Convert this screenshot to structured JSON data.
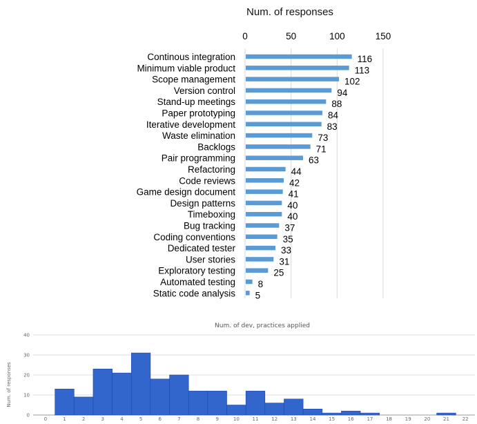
{
  "chart_data": [
    {
      "type": "bar",
      "orientation": "horizontal",
      "title": "Num. of responses",
      "xlim": [
        0,
        150
      ],
      "x_ticks": [
        "0",
        "50",
        "100",
        "150"
      ],
      "grid": true,
      "colors": {
        "bar": "#5b9bd5",
        "grid": "#d9d9d9"
      },
      "categories": [
        "Continous integration",
        "Minimum viable product",
        "Scope management",
        "Version control",
        "Stand-up meetings",
        "Paper prototyping",
        "Iterative development",
        "Waste elimination",
        "Backlogs",
        "Pair programming",
        "Refactoring",
        "Code reviews",
        "Game design document",
        "Design patterns",
        "Timeboxing",
        "Bug tracking",
        "Coding conventions",
        "Dedicated tester",
        "User stories",
        "Exploratory testing",
        "Automated testing",
        "Static code analysis"
      ],
      "values": [
        116,
        113,
        102,
        94,
        88,
        84,
        83,
        73,
        71,
        63,
        44,
        42,
        41,
        40,
        40,
        37,
        35,
        33,
        31,
        25,
        8,
        5
      ],
      "value_labels": [
        "116",
        "113",
        "102",
        "94",
        "88",
        "84",
        "83",
        "73",
        "71",
        "63",
        "44",
        "42",
        "41",
        "40",
        "40",
        "37",
        "35",
        "33",
        "31",
        "25",
        "8",
        "5"
      ]
    },
    {
      "type": "bar",
      "orientation": "vertical",
      "title": "Num. of dev, practices applied",
      "ylabel": "Num. of responses",
      "ylim": [
        0,
        40
      ],
      "y_ticks": [
        "0",
        "10",
        "20",
        "30",
        "40"
      ],
      "categories": [
        "0",
        "1",
        "2",
        "3",
        "4",
        "5",
        "6",
        "7",
        "8",
        "9",
        "10",
        "11",
        "12",
        "13",
        "14",
        "15",
        "16",
        "17",
        "18",
        "19",
        "20",
        "21",
        "22"
      ],
      "values": [
        0,
        13,
        9,
        23,
        21,
        31,
        18,
        20,
        12,
        12,
        5,
        12,
        6,
        8,
        3,
        1,
        2,
        1,
        0,
        0,
        0,
        1,
        0
      ],
      "grid": true,
      "colors": {
        "bar": "#3366cc",
        "bar_edge": "#1f47a8",
        "grid": "#dddddd",
        "axis": "#999999"
      }
    }
  ]
}
